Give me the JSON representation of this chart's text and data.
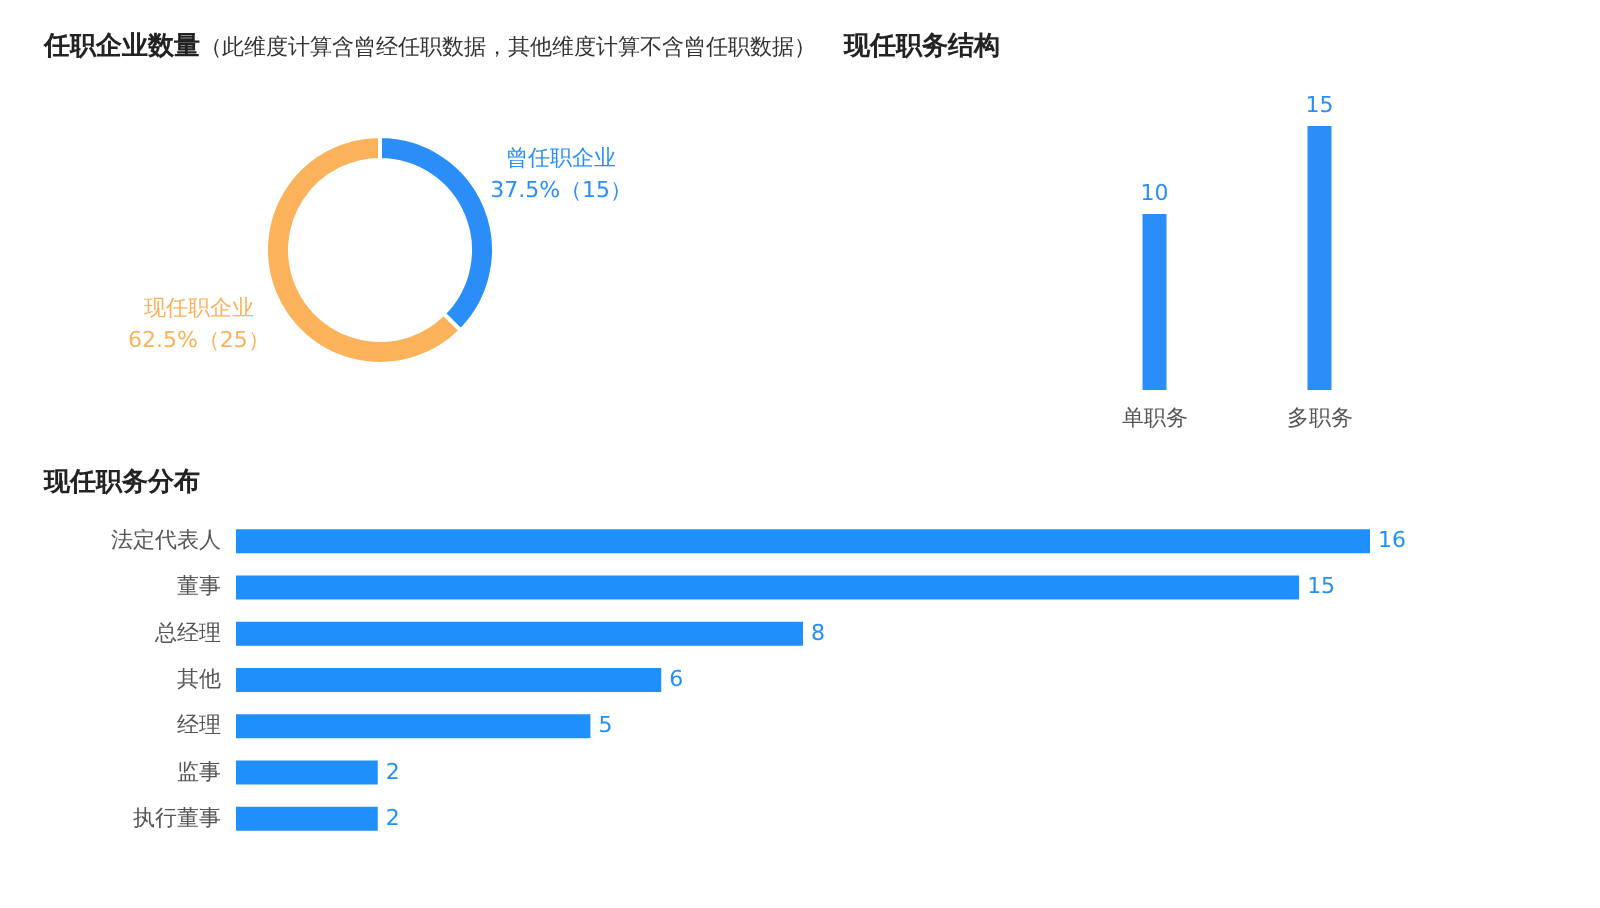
{
  "chart_data": [
    {
      "type": "donut",
      "title": "任职企业数量",
      "subtitle": "（此维度计算含曾经任职数据，其他维度计算不含曾任职数据）",
      "categories": [
        "曾任职企业",
        "现任职企业"
      ],
      "values": [
        15,
        25
      ],
      "colors": [
        "#2b8ef8",
        "#fbb25a"
      ],
      "value_labels": [
        "37.5%（15）",
        "62.5%（25）"
      ]
    },
    {
      "type": "bar",
      "title": "现任职务结构",
      "categories": [
        "单职务",
        "多职务"
      ],
      "values": [
        10,
        15
      ],
      "color": "#2b8ef8",
      "data_labels": true
    },
    {
      "type": "bar",
      "orientation": "horizontal",
      "title": "现任职务分布",
      "categories": [
        "法定代表人",
        "董事",
        "总经理",
        "其他",
        "经理",
        "监事",
        "执行董事"
      ],
      "values": [
        16,
        15,
        8,
        6,
        5,
        2,
        2
      ],
      "color": "#1f8ffb",
      "data_labels": true
    }
  ]
}
